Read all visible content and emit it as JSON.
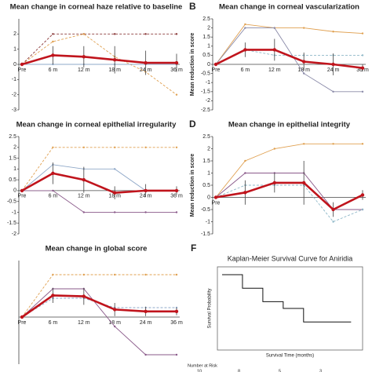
{
  "chart_data": [
    {
      "type": "line",
      "title": "Mean change in corneal haze relative to baseline",
      "categories": [
        "Pre",
        "6 m",
        "12 m",
        "18 m",
        "24 m",
        "36 m"
      ],
      "ylim": [
        -3,
        3
      ],
      "yticks": [
        -3,
        -2,
        -1,
        0,
        1,
        2
      ],
      "series": [
        {
          "color": "#8b3a3a",
          "dashed": true,
          "values": [
            0,
            2,
            2,
            2,
            2,
            2
          ]
        },
        {
          "color": "#e0a050",
          "dashed": true,
          "values": [
            0,
            1.5,
            2,
            0.5,
            -0.5,
            -2
          ]
        },
        {
          "color": "#8fa8c8",
          "dashed": false,
          "values": [
            0,
            0,
            0,
            0,
            0,
            0
          ]
        },
        {
          "color": "#c0141c",
          "dashed": false,
          "values": [
            0,
            0.6,
            0.5,
            0.3,
            0.1,
            0.1
          ],
          "errors": [
            0,
            0.6,
            0.7,
            0.9,
            0.8,
            0.6
          ]
        }
      ]
    },
    {
      "type": "line",
      "label": "B",
      "title": "Mean change in corneal vascularization",
      "ylabel": "Mean reduction in score",
      "categories": [
        "Pre",
        "6 m",
        "12 m",
        "18 m",
        "24 m",
        "36 m"
      ],
      "ylim": [
        -2.5,
        2.5
      ],
      "yticks": [
        -2.5,
        -2,
        -1.5,
        -1,
        -0.5,
        0,
        0.5,
        1,
        1.5,
        2,
        2.5
      ],
      "series": [
        {
          "color": "#e0a050",
          "dashed": false,
          "values": [
            0,
            2.2,
            2,
            2,
            1.8,
            1.7
          ]
        },
        {
          "color": "#8a8aa8",
          "dashed": false,
          "values": [
            0,
            2,
            2,
            -0.5,
            -1.5,
            -1.5
          ]
        },
        {
          "color": "#8fb8c8",
          "dashed": true,
          "values": [
            0,
            0.8,
            0.5,
            0.5,
            0.5,
            0.5
          ]
        },
        {
          "color": "#c0141c",
          "dashed": false,
          "values": [
            0,
            0.8,
            0.8,
            0.15,
            0,
            -0.2
          ],
          "errors": [
            0,
            0.4,
            0.6,
            0.5,
            0.6,
            0.2
          ]
        }
      ]
    },
    {
      "type": "line",
      "title": "Mean change in corneal epithelial irregularity",
      "categories": [
        "Pre",
        "6 m",
        "12 m",
        "18 m",
        "24 m",
        "36 m"
      ],
      "ylim": [
        -2,
        2.5
      ],
      "yticks": [
        -2,
        -1.5,
        -1,
        -0.5,
        0,
        0.5,
        1,
        1.5,
        2,
        2.5
      ],
      "series": [
        {
          "color": "#e0a050",
          "dashed": true,
          "values": [
            0,
            2,
            2,
            2,
            2,
            2
          ]
        },
        {
          "color": "#8fa8c8",
          "dashed": false,
          "values": [
            0,
            1.2,
            1,
            1,
            0,
            0
          ]
        },
        {
          "color": "#8a5a8a",
          "dashed": false,
          "values": [
            0,
            0,
            -1,
            -1,
            -1,
            -1
          ]
        },
        {
          "color": "#c0141c",
          "dashed": false,
          "values": [
            0,
            0.8,
            0.5,
            -0.1,
            0,
            0
          ],
          "errors": [
            0,
            0.5,
            0.6,
            0.3,
            0.3,
            0.2
          ]
        }
      ]
    },
    {
      "type": "line",
      "label": "D",
      "title": "Mean change in epithelial integrity",
      "ylabel": "Mean reduction in score",
      "categories": [
        "Pre",
        null,
        null,
        null,
        null,
        null
      ],
      "ylim": [
        -1.5,
        2.5
      ],
      "yticks": [
        -1.5,
        -1,
        -0.5,
        0,
        0.5,
        1,
        1.5,
        2,
        2.5
      ],
      "series": [
        {
          "color": "#e0a050",
          "dashed": false,
          "values": [
            0,
            1.5,
            2,
            2.2,
            2.2,
            2.2
          ]
        },
        {
          "color": "#8a5a8a",
          "dashed": false,
          "values": [
            0,
            1,
            1,
            1,
            -0.5,
            -0.5
          ]
        },
        {
          "color": "#8fb8c8",
          "dashed": true,
          "values": [
            0,
            0.5,
            0.5,
            0.5,
            -1,
            -0.5
          ]
        },
        {
          "color": "#c0141c",
          "dashed": false,
          "values": [
            0,
            0.2,
            0.6,
            0.6,
            -0.5,
            0.1
          ],
          "errors": [
            0,
            0.5,
            0.4,
            0.9,
            0.3,
            0.2
          ]
        }
      ]
    },
    {
      "type": "line",
      "title": "Mean change in global score",
      "categories": [
        "Pre",
        "6 m",
        "12 m",
        "18 m",
        "24 m",
        "36 m"
      ],
      "ylim": [
        -5,
        6
      ],
      "series": [
        {
          "color": "#e0a050",
          "dashed": true,
          "values": [
            0,
            4.5,
            4.5,
            4.5,
            4.5,
            4.5
          ]
        },
        {
          "color": "#8a5a8a",
          "dashed": false,
          "values": [
            0,
            3,
            3,
            -1,
            -4,
            -4
          ]
        },
        {
          "color": "#8fa8c8",
          "dashed": true,
          "values": [
            0,
            2,
            2,
            1,
            1,
            1
          ]
        },
        {
          "color": "#c0141c",
          "dashed": false,
          "values": [
            0,
            2.3,
            2.2,
            0.8,
            0.6,
            0.6
          ],
          "errors": [
            0,
            0.8,
            0.9,
            0.7,
            0.5,
            0.4
          ]
        }
      ]
    },
    {
      "type": "step",
      "label": "F",
      "title": "Kaplan-Meier Survival Curve for Aniridia",
      "xlabel": "Survival Time (months)",
      "ylabel": "Survival Probability",
      "x": [
        0,
        6,
        12,
        18,
        24,
        38
      ],
      "values": [
        1,
        0.8,
        0.6,
        0.5,
        0.3,
        0.3
      ],
      "xlim": [
        0,
        40
      ],
      "ylim": [
        0,
        1
      ],
      "color": "#111111",
      "risk_title": "Number at Risk",
      "risk": [
        "10",
        "8",
        "5",
        "3"
      ]
    }
  ]
}
